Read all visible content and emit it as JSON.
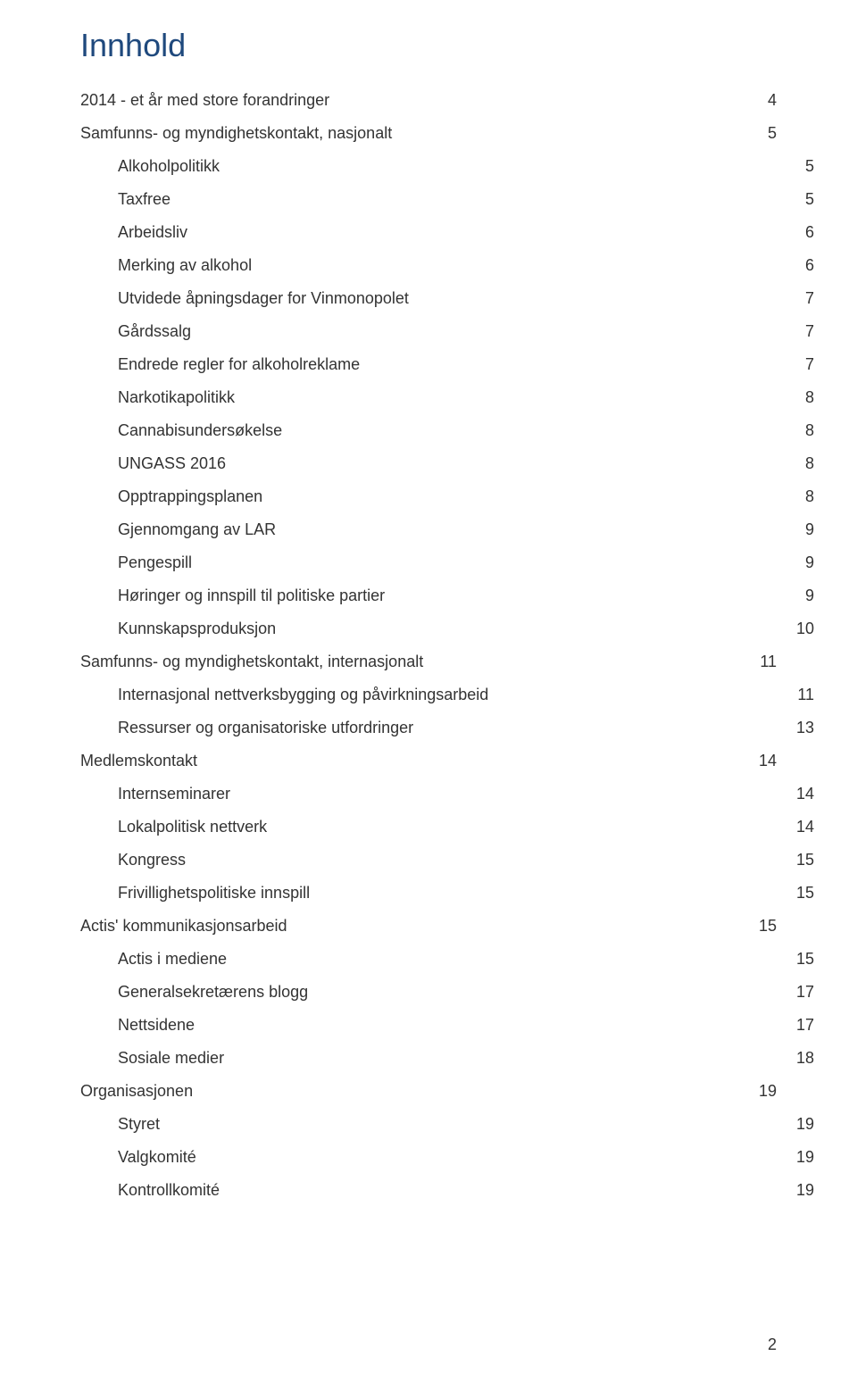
{
  "document": {
    "locale": "nb-NO",
    "title": "Innhold",
    "palette": {
      "title_color": "#1f497d",
      "text_color": "#333333",
      "background_color": "#ffffff"
    },
    "typography": {
      "title_fontsize_pt": 27,
      "body_fontsize_pt": 14,
      "font_family": "Helvetica Neue, Helvetica, Arial, sans-serif"
    },
    "page_number": "2",
    "toc": [
      {
        "label": "2014 - et år med store forandringer",
        "page": "4",
        "level": 0
      },
      {
        "label": "Samfunns- og myndighetskontakt, nasjonalt",
        "page": "5",
        "level": 0
      },
      {
        "label": "Alkoholpolitikk",
        "page": "5",
        "level": 1
      },
      {
        "label": "Taxfree",
        "page": "5",
        "level": 1
      },
      {
        "label": "Arbeidsliv",
        "page": "6",
        "level": 1
      },
      {
        "label": "Merking av alkohol",
        "page": "6",
        "level": 1
      },
      {
        "label": "Utvidede åpningsdager for Vinmonopolet",
        "page": "7",
        "level": 1
      },
      {
        "label": "Gårdssalg",
        "page": "7",
        "level": 1
      },
      {
        "label": "Endrede regler for alkoholreklame",
        "page": "7",
        "level": 1
      },
      {
        "label": "Narkotikapolitikk",
        "page": "8",
        "level": 1
      },
      {
        "label": "Cannabisundersøkelse",
        "page": "8",
        "level": 1
      },
      {
        "label": "UNGASS 2016",
        "page": "8",
        "level": 1
      },
      {
        "label": "Opptrappingsplanen",
        "page": "8",
        "level": 1
      },
      {
        "label": "Gjennomgang av LAR",
        "page": "9",
        "level": 1
      },
      {
        "label": "Pengespill",
        "page": "9",
        "level": 1
      },
      {
        "label": "Høringer og innspill til politiske partier",
        "page": "9",
        "level": 1
      },
      {
        "label": "Kunnskapsproduksjon",
        "page": "10",
        "level": 1
      },
      {
        "label": "Samfunns- og myndighetskontakt, internasjonalt",
        "page": "11",
        "level": 0
      },
      {
        "label": "Internasjonal nettverksbygging og påvirkningsarbeid",
        "page": "11",
        "level": 1
      },
      {
        "label": "Ressurser og organisatoriske utfordringer",
        "page": "13",
        "level": 1
      },
      {
        "label": "Medlemskontakt",
        "page": "14",
        "level": 0
      },
      {
        "label": "Internseminarer",
        "page": "14",
        "level": 1
      },
      {
        "label": "Lokalpolitisk nettverk",
        "page": "14",
        "level": 1
      },
      {
        "label": "Kongress",
        "page": "15",
        "level": 1
      },
      {
        "label": "Frivillighetspolitiske innspill",
        "page": "15",
        "level": 1
      },
      {
        "label": "Actis' kommunikasjonsarbeid",
        "page": "15",
        "level": 0
      },
      {
        "label": "Actis i mediene",
        "page": "15",
        "level": 1
      },
      {
        "label": "Generalsekretærens blogg",
        "page": "17",
        "level": 1
      },
      {
        "label": "Nettsidene",
        "page": "17",
        "level": 1
      },
      {
        "label": "Sosiale medier",
        "page": "18",
        "level": 1
      },
      {
        "label": "Organisasjonen",
        "page": "19",
        "level": 0
      },
      {
        "label": "Styret",
        "page": "19",
        "level": 1
      },
      {
        "label": "Valgkomité",
        "page": "19",
        "level": 1
      },
      {
        "label": "Kontrollkomité",
        "page": "19",
        "level": 1
      }
    ]
  }
}
